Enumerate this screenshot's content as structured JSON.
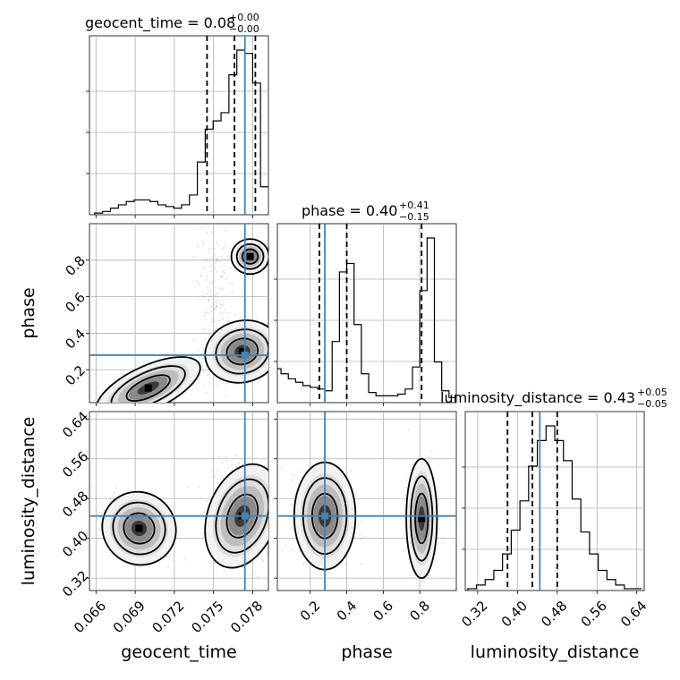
{
  "chart_data": {
    "type": "corner",
    "parameters": [
      {
        "name": "geocent_time",
        "label": "geocent_time",
        "range": [
          0.0655,
          0.0792
        ],
        "ticks": [
          0.066,
          0.069,
          0.072,
          0.075,
          0.078
        ],
        "tick_labels": [
          "0.066",
          "0.069",
          "0.072",
          "0.075",
          "0.078"
        ],
        "median": 0.08,
        "plus": "+0.00",
        "minus": "−0.00",
        "title_prefix": "geocent_time = 0.08",
        "quantiles": [
          0.0745,
          0.0766,
          0.0782
        ],
        "truth": 0.0774
      },
      {
        "name": "phase",
        "label": "phase",
        "range": [
          0.02,
          1.0
        ],
        "ticks": [
          0.2,
          0.4,
          0.6,
          0.8
        ],
        "tick_labels": [
          "0.2",
          "0.4",
          "0.6",
          "0.8"
        ],
        "median": 0.4,
        "plus": "+0.41",
        "minus": "−0.15",
        "title_prefix": "phase = 0.40",
        "quantiles": [
          0.25,
          0.4,
          0.81
        ],
        "truth": 0.28
      },
      {
        "name": "luminosity_distance",
        "label": "luminosity_distance",
        "range": [
          0.295,
          0.655
        ],
        "ticks": [
          0.32,
          0.4,
          0.48,
          0.56,
          0.64
        ],
        "tick_labels": [
          "0.32",
          "0.40",
          "0.48",
          "0.56",
          "0.64"
        ],
        "median": 0.43,
        "plus": "+0.05",
        "minus": "−0.05",
        "title_prefix": "luminosity_distance = 0.43",
        "quantiles": [
          0.38,
          0.43,
          0.48
        ],
        "truth": 0.445
      }
    ],
    "histograms": [
      {
        "param": "geocent_time",
        "edges_range": [
          0.0659,
          0.0792
        ],
        "counts": [
          1,
          2,
          4,
          6,
          8,
          9,
          9,
          8,
          6,
          5,
          4,
          6,
          12,
          32,
          52,
          57,
          62,
          85,
          100,
          98,
          80,
          17
        ]
      },
      {
        "param": "phase",
        "edges_range": [
          0.0,
          1.0
        ],
        "counts": [
          20,
          17,
          14,
          12,
          10,
          9,
          8,
          7,
          36,
          77,
          82,
          46,
          17,
          6,
          4,
          4,
          4,
          5,
          8,
          21,
          66,
          97,
          24,
          7,
          3
        ]
      },
      {
        "param": "luminosity_distance",
        "edges_range": [
          0.3,
          0.65
        ],
        "counts": [
          1,
          3,
          6,
          11,
          20,
          33,
          49,
          68,
          82,
          90,
          82,
          71,
          50,
          32,
          20,
          11,
          6,
          3,
          1,
          1
        ]
      }
    ],
    "density_centers": {
      "geocent_time_vs_phase": [
        [
          0.0778,
          0.82
        ],
        [
          0.0774,
          0.28
        ]
      ],
      "geocent_time_vs_luminosity_distance": [
        [
          0.0779,
          0.437
        ],
        [
          0.0695,
          0.41
        ]
      ],
      "phase_vs_luminosity_distance": [
        [
          0.28,
          0.445
        ],
        [
          0.81,
          0.437
        ]
      ]
    }
  }
}
